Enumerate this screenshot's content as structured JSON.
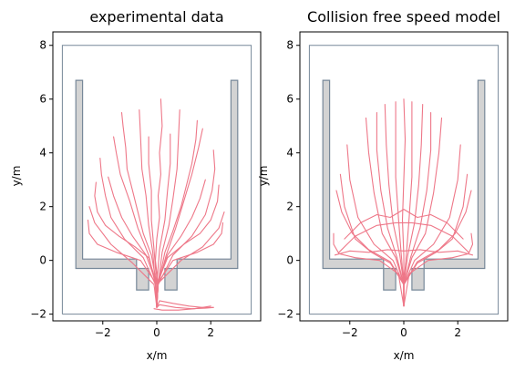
{
  "chart_data": [
    {
      "type": "line",
      "title": "experimental data",
      "xlabel": "x/m",
      "ylabel": "y/m",
      "xlim": [
        -3.85,
        3.85
      ],
      "ylim": [
        -2.25,
        8.5
      ],
      "xticks": [
        -2,
        0,
        2
      ],
      "yticks": [
        -2,
        0,
        2,
        4,
        6,
        8
      ],
      "grid": false,
      "colors": {
        "trajectory": "#ee7788",
        "wall": "#778899",
        "obstacle_fill": "#d3d3d3"
      },
      "boundary": [
        [
          -3.5,
          -2
        ],
        [
          3.5,
          -2
        ],
        [
          3.5,
          8
        ],
        [
          -3.5,
          8
        ],
        [
          -3.5,
          -2
        ]
      ],
      "obstacles": [
        [
          [
            -0.3,
            -1.1
          ],
          [
            -0.3,
            -0.3
          ],
          [
            -3.0,
            -0.3
          ],
          [
            -3.0,
            6.7
          ],
          [
            -2.75,
            6.7
          ],
          [
            -2.75,
            0.05
          ],
          [
            -0.75,
            0.05
          ],
          [
            -0.75,
            -0.3
          ],
          [
            -0.75,
            -1.1
          ],
          [
            -0.3,
            -1.1
          ]
        ],
        [
          [
            0.3,
            -1.1
          ],
          [
            0.3,
            -0.3
          ],
          [
            3.0,
            -0.3
          ],
          [
            3.0,
            6.7
          ],
          [
            2.75,
            6.7
          ],
          [
            2.75,
            0.05
          ],
          [
            0.75,
            0.05
          ],
          [
            0.75,
            -0.3
          ],
          [
            0.75,
            -1.1
          ],
          [
            0.3,
            -1.1
          ]
        ]
      ],
      "trajectories": [
        {
          "x": [
            0.0,
            0.05,
            -0.05,
            0.0,
            0.1,
            0.05,
            0.15,
            0.1,
            0.2,
            0.15
          ],
          "y": [
            -1.75,
            -0.9,
            0.0,
            0.8,
            1.6,
            2.4,
            3.2,
            4.0,
            5.0,
            6.0
          ]
        },
        {
          "x": [
            0.0,
            0.0,
            -0.2,
            -0.5,
            -0.7,
            -0.9,
            -1.1,
            -1.15,
            -1.25,
            -1.3
          ],
          "y": [
            -1.75,
            -0.9,
            0.2,
            1.0,
            1.8,
            2.6,
            3.4,
            4.2,
            5.0,
            5.5
          ]
        },
        {
          "x": [
            0.0,
            0.05,
            0.3,
            0.6,
            0.9,
            1.1,
            1.3,
            1.45,
            1.5
          ],
          "y": [
            -1.75,
            -0.9,
            0.3,
            1.1,
            2.0,
            2.8,
            3.6,
            4.5,
            5.2
          ]
        },
        {
          "x": [
            0.0,
            -0.05,
            -0.5,
            -1.2,
            -1.7,
            -1.9,
            -2.05,
            -2.1
          ],
          "y": [
            -1.75,
            -0.9,
            0.1,
            0.8,
            1.6,
            2.4,
            3.2,
            3.8
          ]
        },
        {
          "x": [
            0.0,
            0.05,
            0.6,
            1.3,
            1.8,
            2.05,
            2.15,
            2.1
          ],
          "y": [
            -1.75,
            -0.9,
            0.2,
            0.9,
            1.7,
            2.6,
            3.4,
            4.1
          ]
        },
        {
          "x": [
            0.0,
            0.0,
            -0.3,
            -0.8,
            -1.4,
            -1.9,
            -2.2,
            -2.3,
            -2.25
          ],
          "y": [
            -1.75,
            -0.9,
            0.1,
            0.5,
            0.9,
            1.3,
            1.8,
            2.4,
            2.9
          ]
        },
        {
          "x": [
            0.0,
            0.0,
            0.4,
            1.0,
            1.6,
            2.0,
            2.25,
            2.3
          ],
          "y": [
            -1.75,
            -0.9,
            0.1,
            0.6,
            1.0,
            1.5,
            2.2,
            2.8
          ]
        },
        {
          "x": [
            0.0,
            -0.05,
            -0.15,
            -0.3,
            -0.4,
            -0.55,
            -0.6,
            -0.65
          ],
          "y": [
            -1.75,
            -0.9,
            0.3,
            1.3,
            2.4,
            3.4,
            4.6,
            5.6
          ]
        },
        {
          "x": [
            0.0,
            0.05,
            0.2,
            0.45,
            0.6,
            0.75,
            0.8,
            0.85
          ],
          "y": [
            -1.75,
            -0.9,
            0.3,
            1.3,
            2.3,
            3.4,
            4.5,
            5.6
          ]
        },
        {
          "x": [
            0.0,
            0.0,
            -0.6,
            -1.5,
            -2.2,
            -2.5,
            -2.55
          ],
          "y": [
            -1.75,
            -0.9,
            0.0,
            0.3,
            0.6,
            1.0,
            1.5
          ]
        },
        {
          "x": [
            0.0,
            0.0,
            0.6,
            1.5,
            2.1,
            2.4,
            2.45
          ],
          "y": [
            -1.75,
            -0.9,
            0.0,
            0.3,
            0.6,
            1.0,
            1.4
          ]
        },
        {
          "x": [
            0.0,
            -0.05,
            -0.3,
            -0.7,
            -1.0,
            -1.35,
            -1.5,
            -1.6
          ],
          "y": [
            -1.75,
            -0.9,
            0.2,
            1.2,
            2.2,
            3.2,
            4.0,
            4.6
          ]
        },
        {
          "x": [
            0.0,
            0.05,
            0.35,
            0.7,
            1.0,
            1.3,
            1.55,
            1.7
          ],
          "y": [
            -1.75,
            -0.9,
            0.2,
            1.2,
            2.2,
            3.2,
            4.2,
            4.9
          ]
        },
        {
          "x": [
            0.0,
            0.0,
            -0.1,
            -0.2,
            -0.2,
            -0.3,
            -0.3
          ],
          "y": [
            -1.75,
            -0.9,
            0.4,
            1.5,
            2.6,
            3.6,
            4.6
          ]
        },
        {
          "x": [
            0.0,
            0.0,
            0.1,
            0.3,
            0.4,
            0.5,
            0.5
          ],
          "y": [
            -1.75,
            -0.9,
            0.4,
            1.5,
            2.6,
            3.6,
            4.7
          ]
        },
        {
          "x": [
            0.0,
            0.0,
            -0.4,
            -0.9,
            -1.3,
            -1.6,
            -1.8
          ],
          "y": [
            -1.75,
            -0.9,
            0.2,
            0.9,
            1.6,
            2.4,
            3.1
          ]
        },
        {
          "x": [
            0.0,
            0.0,
            0.4,
            0.9,
            1.3,
            1.6,
            1.8
          ],
          "y": [
            -1.75,
            -0.9,
            0.2,
            0.9,
            1.6,
            2.3,
            3.0
          ]
        },
        {
          "x": [
            0.0,
            0.1,
            0.6,
            1.2,
            1.7,
            2.1
          ],
          "y": [
            -1.75,
            -1.5,
            -1.6,
            -1.7,
            -1.75,
            -1.75
          ]
        },
        {
          "x": [
            0.0,
            0.1,
            0.7,
            1.3,
            1.8,
            2.1
          ],
          "y": [
            -1.75,
            -1.65,
            -1.75,
            -1.8,
            -1.78,
            -1.75
          ]
        },
        {
          "x": [
            -0.1,
            0.2,
            0.8,
            1.4,
            2.0
          ],
          "y": [
            -1.8,
            -1.85,
            -1.85,
            -1.8,
            -1.7
          ]
        },
        {
          "x": [
            0.0,
            -0.1,
            -0.9,
            -1.7,
            -2.3,
            -2.5
          ],
          "y": [
            -1.75,
            -0.9,
            -0.1,
            0.6,
            1.4,
            2.0
          ]
        },
        {
          "x": [
            0.0,
            0.0,
            0.9,
            1.7,
            2.3,
            2.5
          ],
          "y": [
            -1.75,
            -0.9,
            0.0,
            0.5,
            1.2,
            1.8
          ]
        }
      ]
    },
    {
      "type": "line",
      "title": "Collision free speed model",
      "xlabel": "x/m",
      "ylabel": "y/m",
      "xlim": [
        -3.85,
        3.85
      ],
      "ylim": [
        -2.25,
        8.5
      ],
      "xticks": [
        -2,
        0,
        2
      ],
      "yticks": [
        -2,
        0,
        2,
        4,
        6,
        8
      ],
      "grid": false,
      "colors": {
        "trajectory": "#ee7788",
        "wall": "#778899",
        "obstacle_fill": "#d3d3d3"
      },
      "boundary": [
        [
          -3.5,
          -2
        ],
        [
          3.5,
          -2
        ],
        [
          3.5,
          8
        ],
        [
          -3.5,
          8
        ],
        [
          -3.5,
          -2
        ]
      ],
      "obstacles": [
        [
          [
            -0.3,
            -1.1
          ],
          [
            -0.3,
            -0.3
          ],
          [
            -3.0,
            -0.3
          ],
          [
            -3.0,
            6.7
          ],
          [
            -2.75,
            6.7
          ],
          [
            -2.75,
            0.05
          ],
          [
            -0.75,
            0.05
          ],
          [
            -0.75,
            -0.3
          ],
          [
            -0.75,
            -1.1
          ],
          [
            -0.3,
            -1.1
          ]
        ],
        [
          [
            0.3,
            -1.1
          ],
          [
            0.3,
            -0.3
          ],
          [
            3.0,
            -0.3
          ],
          [
            3.0,
            6.7
          ],
          [
            2.75,
            6.7
          ],
          [
            2.75,
            0.05
          ],
          [
            0.75,
            0.05
          ],
          [
            0.75,
            -0.3
          ],
          [
            0.75,
            -1.1
          ],
          [
            0.3,
            -1.1
          ]
        ]
      ],
      "trajectories": [
        {
          "x": [
            0.0,
            0.0,
            0.0,
            -0.05,
            0.0,
            0.05,
            0.0
          ],
          "y": [
            -1.7,
            -0.9,
            0.2,
            1.5,
            3.0,
            4.5,
            6.0
          ]
        },
        {
          "x": [
            0.0,
            0.0,
            -0.5,
            -1.2,
            -1.8,
            -2.2,
            -2.35
          ],
          "y": [
            -1.7,
            -0.9,
            -0.1,
            0.3,
            0.8,
            2.0,
            3.2
          ]
        },
        {
          "x": [
            0.0,
            0.0,
            0.5,
            1.2,
            1.8,
            2.2,
            2.35
          ],
          "y": [
            -1.7,
            -0.9,
            -0.1,
            0.3,
            0.8,
            2.0,
            3.2
          ]
        },
        {
          "x": [
            0.0,
            0.0,
            -0.3,
            -0.8,
            -1.1,
            -1.3,
            -1.4
          ],
          "y": [
            -1.7,
            -0.9,
            0.1,
            1.0,
            2.5,
            4.0,
            5.3
          ]
        },
        {
          "x": [
            0.0,
            0.0,
            0.3,
            0.8,
            1.1,
            1.3,
            1.4
          ],
          "y": [
            -1.7,
            -0.9,
            0.1,
            1.0,
            2.5,
            4.0,
            5.3
          ]
        },
        {
          "x": [
            0.0,
            0.0,
            -0.15,
            -0.4,
            -0.55,
            -0.65,
            -0.7
          ],
          "y": [
            -1.7,
            -0.9,
            0.2,
            1.4,
            2.8,
            4.3,
            5.8
          ]
        },
        {
          "x": [
            0.0,
            0.0,
            0.15,
            0.4,
            0.55,
            0.65,
            0.7
          ],
          "y": [
            -1.7,
            -0.9,
            0.2,
            1.4,
            2.8,
            4.3,
            5.8
          ]
        },
        {
          "x": [
            0.0,
            0.0,
            -0.4,
            -1.1,
            -1.7,
            -2.0,
            -2.1
          ],
          "y": [
            -1.7,
            -0.9,
            0.0,
            0.6,
            1.6,
            3.0,
            4.3
          ]
        },
        {
          "x": [
            0.0,
            0.0,
            0.4,
            1.1,
            1.7,
            2.0,
            2.1
          ],
          "y": [
            -1.7,
            -0.9,
            0.0,
            0.6,
            1.6,
            3.0,
            4.3
          ]
        },
        {
          "x": [
            0.0,
            -0.2,
            -0.9,
            -1.8,
            -2.4,
            -2.6,
            -2.6
          ],
          "y": [
            -1.7,
            -0.5,
            0.0,
            0.1,
            0.25,
            0.6,
            1.0
          ]
        },
        {
          "x": [
            0.0,
            0.2,
            0.9,
            1.8,
            2.4,
            2.55,
            2.5
          ],
          "y": [
            -1.7,
            -0.5,
            0.0,
            0.1,
            0.25,
            0.6,
            1.0
          ]
        },
        {
          "x": [
            -2.4,
            -1.8,
            -1.0,
            -0.3,
            0.3,
            1.0,
            1.8,
            2.4
          ],
          "y": [
            0.3,
            0.9,
            1.3,
            1.4,
            1.4,
            1.3,
            0.9,
            0.3
          ]
        },
        {
          "x": [
            -2.2,
            -1.6,
            -1.0,
            -0.5,
            0.0,
            0.5,
            1.0,
            1.6,
            2.2
          ],
          "y": [
            0.8,
            1.4,
            1.7,
            1.6,
            1.9,
            1.6,
            1.7,
            1.4,
            0.8
          ]
        },
        {
          "x": [
            -2.55,
            -2.0,
            -1.3,
            -0.6,
            0.0,
            0.6,
            1.3,
            2.0,
            2.55
          ],
          "y": [
            0.2,
            0.35,
            0.3,
            0.4,
            0.35,
            0.4,
            0.3,
            0.35,
            0.2
          ]
        },
        {
          "x": [
            0.0,
            0.0,
            -0.25,
            -0.6,
            -0.85,
            -1.0,
            -1.0
          ],
          "y": [
            -1.7,
            -0.9,
            0.1,
            1.2,
            2.6,
            4.1,
            5.5
          ]
        },
        {
          "x": [
            0.0,
            0.0,
            0.25,
            0.6,
            0.85,
            1.0,
            1.0
          ],
          "y": [
            -1.7,
            -0.9,
            0.1,
            1.2,
            2.6,
            4.1,
            5.5
          ]
        },
        {
          "x": [
            0.0,
            0.0,
            -0.5,
            -1.3,
            -1.9,
            -2.3,
            -2.5
          ],
          "y": [
            -1.7,
            -0.9,
            -0.05,
            0.4,
            1.0,
            1.8,
            2.6
          ]
        },
        {
          "x": [
            0.0,
            0.0,
            0.5,
            1.3,
            1.9,
            2.3,
            2.5
          ],
          "y": [
            -1.7,
            -0.9,
            -0.05,
            0.4,
            1.0,
            1.8,
            2.6
          ]
        },
        {
          "x": [
            0.0,
            0.0,
            -0.1,
            -0.2,
            -0.3,
            -0.3,
            -0.3
          ],
          "y": [
            -1.7,
            -0.9,
            0.3,
            1.6,
            3.1,
            4.6,
            5.9
          ]
        },
        {
          "x": [
            0.0,
            0.0,
            0.1,
            0.2,
            0.3,
            0.3,
            0.3
          ],
          "y": [
            -1.7,
            -0.9,
            0.3,
            1.6,
            3.1,
            4.6,
            5.9
          ]
        }
      ]
    }
  ]
}
